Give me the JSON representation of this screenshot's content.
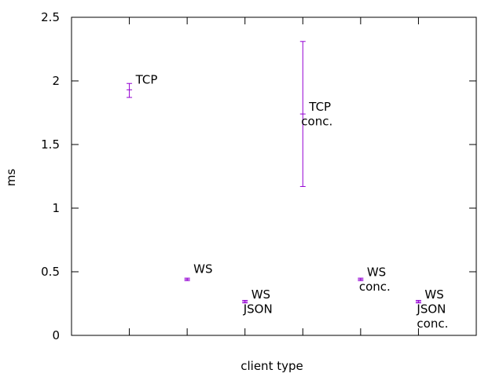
{
  "chart_data": {
    "type": "scatter",
    "xlabel": "client type",
    "ylabel": "ms",
    "ylim": [
      0,
      2.5
    ],
    "xlim": [
      0,
      7
    ],
    "yticks": [
      "0",
      "0.5",
      "1",
      "1.5",
      "2",
      "2.5"
    ],
    "grid": false,
    "legend": "none",
    "errorbars": true,
    "color": "#9400d3",
    "points": [
      {
        "x": 1,
        "y": 1.93,
        "err_low": 1.87,
        "err_high": 1.98,
        "label_lines": [
          "TCP"
        ]
      },
      {
        "x": 2,
        "y": 0.44,
        "err_low": 0.43,
        "err_high": 0.45,
        "label_lines": [
          "WS"
        ]
      },
      {
        "x": 3,
        "y": 0.265,
        "err_low": 0.255,
        "err_high": 0.275,
        "label_lines": [
          "WS",
          "JSON"
        ]
      },
      {
        "x": 4,
        "y": 1.74,
        "err_low": 1.17,
        "err_high": 2.31,
        "label_lines": [
          "TCP",
          "conc."
        ]
      },
      {
        "x": 5,
        "y": 0.44,
        "err_low": 0.43,
        "err_high": 0.45,
        "label_lines": [
          "WS",
          "conc."
        ]
      },
      {
        "x": 6,
        "y": 0.265,
        "err_low": 0.255,
        "err_high": 0.275,
        "label_lines": [
          "WS",
          "JSON",
          "conc."
        ]
      }
    ]
  }
}
